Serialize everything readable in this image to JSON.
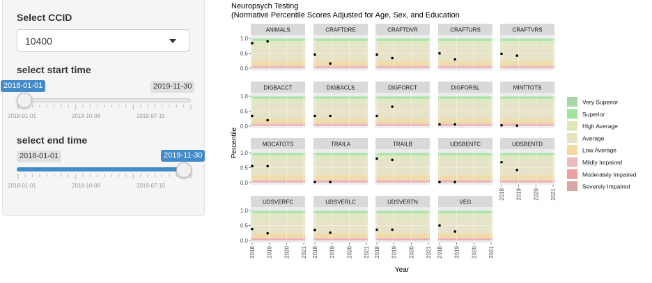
{
  "sidebar": {
    "ccid": {
      "label": "Select CCID",
      "value": "10400"
    },
    "start": {
      "label": "select start time",
      "from_value": "2018-01-01",
      "max_label": "2019-11-30",
      "ticks": [
        "2018-01-01",
        "2018-10-08",
        "2019-07-15"
      ],
      "selected_fraction": 0.0
    },
    "end": {
      "label": "select end time",
      "min_label": "2018-01-01",
      "to_value": "2019-11-30",
      "ticks": [
        "2018-01-01",
        "2018-10-08",
        "2019-07-15"
      ],
      "selected_fraction": 1.0
    },
    "accent_color": "#428bca"
  },
  "chart_data": {
    "type": "scatter",
    "title": "Neuropsych Testing",
    "subtitle": "(Normative Percentile Scores Adjusted for Age, Sex, and Education",
    "xlabel": "Year",
    "ylabel": "Percentile",
    "xlim": [
      2018,
      2021
    ],
    "ylim": [
      0,
      1
    ],
    "x_ticks": [
      "2018",
      "2019",
      "2020",
      "2021"
    ],
    "y_ticks": [
      "0.0",
      "0.5",
      "1.0"
    ],
    "grid": true,
    "legend_placement": "right",
    "bands": [
      {
        "name": "Very Superior",
        "from": 0.98,
        "to": 1.0,
        "color": "#a8d8a8"
      },
      {
        "name": "Superior",
        "from": 0.91,
        "to": 0.98,
        "color": "#9fe39f"
      },
      {
        "name": "High Average",
        "from": 0.75,
        "to": 0.91,
        "color": "#dde8b8"
      },
      {
        "name": "Average",
        "from": 0.25,
        "to": 0.75,
        "color": "#e6e2c2"
      },
      {
        "name": "Low Average",
        "from": 0.09,
        "to": 0.25,
        "color": "#f1d9a0"
      },
      {
        "name": "Mildly Impaired",
        "from": 0.05,
        "to": 0.09,
        "color": "#ebbcbc"
      },
      {
        "name": "Moderately Impaired",
        "from": 0.02,
        "to": 0.05,
        "color": "#ee9e9e"
      },
      {
        "name": "Severely Impaired",
        "from": 0.0,
        "to": 0.02,
        "color": "#d8a5a5"
      }
    ],
    "panels": [
      {
        "name": "ANIMALS",
        "points": [
          [
            2018.0,
            0.84
          ],
          [
            2018.9,
            0.9
          ]
        ]
      },
      {
        "name": "CRAFTDRE",
        "points": [
          [
            2018.0,
            0.46
          ],
          [
            2018.9,
            0.16
          ]
        ]
      },
      {
        "name": "CRAFTDVR",
        "points": [
          [
            2018.0,
            0.46
          ],
          [
            2018.9,
            0.34
          ]
        ]
      },
      {
        "name": "CRAFTURS",
        "points": [
          [
            2018.0,
            0.5
          ],
          [
            2018.9,
            0.3
          ]
        ]
      },
      {
        "name": "CRAFTVRS",
        "points": [
          [
            2018.0,
            0.48
          ],
          [
            2018.9,
            0.42
          ]
        ]
      },
      {
        "name": "DIGBACCT",
        "points": [
          [
            2018.0,
            0.34
          ],
          [
            2018.9,
            0.2
          ]
        ]
      },
      {
        "name": "DIGBACLS",
        "points": [
          [
            2018.0,
            0.34
          ],
          [
            2018.9,
            0.34
          ]
        ]
      },
      {
        "name": "DIGFORCT",
        "points": [
          [
            2018.0,
            0.34
          ],
          [
            2018.9,
            0.65
          ]
        ]
      },
      {
        "name": "DIGFORSL",
        "points": [
          [
            2018.0,
            0.06
          ],
          [
            2018.9,
            0.06
          ]
        ]
      },
      {
        "name": "MINTTOTS",
        "points": [
          [
            2018.0,
            0.03
          ],
          [
            2018.9,
            0.02
          ]
        ]
      },
      {
        "name": "MOCATOTS",
        "points": [
          [
            2018.0,
            0.55
          ],
          [
            2018.9,
            0.55
          ]
        ]
      },
      {
        "name": "TRAILA",
        "points": [
          [
            2018.0,
            0.02
          ],
          [
            2018.9,
            0.02
          ]
        ]
      },
      {
        "name": "TRAILB",
        "points": [
          [
            2018.0,
            0.8
          ],
          [
            2018.9,
            0.76
          ]
        ]
      },
      {
        "name": "UDSBENTC",
        "points": [
          [
            2018.0,
            0.02
          ],
          [
            2018.9,
            0.02
          ]
        ]
      },
      {
        "name": "UDSBENTD",
        "points": [
          [
            2018.0,
            0.68
          ],
          [
            2018.9,
            0.42
          ]
        ]
      },
      {
        "name": "UDSVERFC",
        "points": [
          [
            2018.0,
            0.38
          ],
          [
            2018.9,
            0.24
          ]
        ]
      },
      {
        "name": "UDSVERLC",
        "points": [
          [
            2018.0,
            0.35
          ],
          [
            2018.9,
            0.26
          ]
        ]
      },
      {
        "name": "UDSVERTN",
        "points": [
          [
            2018.0,
            0.36
          ],
          [
            2018.9,
            0.36
          ]
        ]
      },
      {
        "name": "VEG",
        "points": [
          [
            2018.0,
            0.5
          ],
          [
            2018.9,
            0.3
          ]
        ]
      }
    ]
  }
}
